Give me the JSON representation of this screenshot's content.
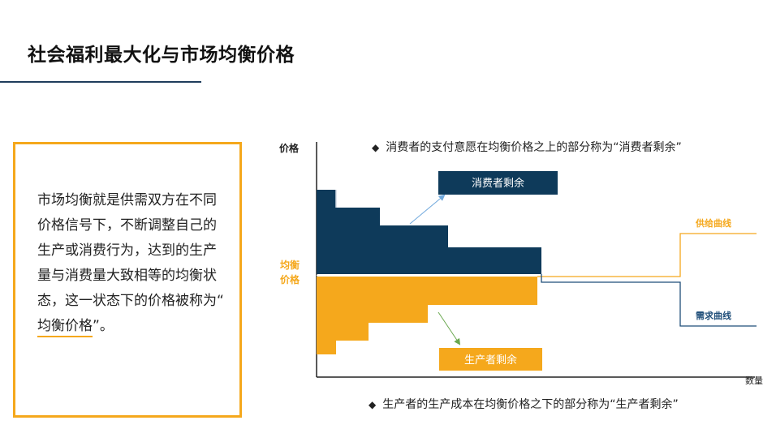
{
  "page": {
    "title": "社会福利最大化与市场均衡价格"
  },
  "textbox": {
    "text_before": "市场均衡就是供需双方在不同价格信号下，不断调整自己的生产或消费行为，达到的生产量与消费量大致相等的均衡状态，这一状态下的价格被称为",
    "quote_open": "“",
    "highlight": "均衡价格",
    "quote_close": "”",
    "text_after": "。"
  },
  "diagram": {
    "y_axis_label": "价格",
    "x_axis_label": "数量",
    "equilibrium_label_line1": "均衡",
    "equilibrium_label_line2": "价格",
    "supply_label": "供给曲线",
    "demand_label": "需求曲线",
    "consumer_surplus_label": "消费者剩余",
    "producer_surplus_label": "生产者剩余",
    "colors": {
      "consumer": "#0e3a5a",
      "producer": "#f5a81c",
      "supply_line": "#f5a81c",
      "demand_line": "#1f4e79",
      "axis": "#222222"
    }
  },
  "notes": {
    "bullet": "◆",
    "consumer_note": "消费者的支付意愿在均衡价格之上的部分称为“消费者剩余”",
    "producer_note": "生产者的生产成本在均衡价格之下的部分称为“生产者剩余”"
  }
}
